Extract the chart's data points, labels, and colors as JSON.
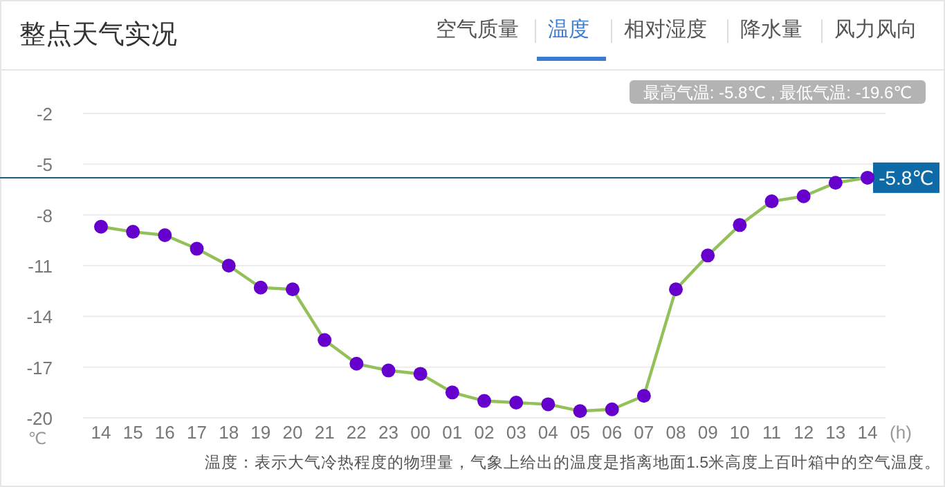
{
  "chart_data": {
    "type": "line",
    "title": "整点天气实况",
    "annotations": [
      "空气质量",
      "温度",
      "相对湿度",
      "降水量",
      "风力风向",
      "最高气温: -5.8℃ , 最低气温: -19.6℃",
      "温度：表示大气冷热程度的物理量，气象上给出的温度是指离地面1.5米高度上百叶箱中的空气温度。"
    ],
    "xlabel": "(h)",
    "ylabel": "℃",
    "categories": [
      "14",
      "15",
      "16",
      "17",
      "18",
      "19",
      "20",
      "21",
      "22",
      "23",
      "00",
      "01",
      "02",
      "03",
      "04",
      "05",
      "06",
      "07",
      "08",
      "09",
      "10",
      "11",
      "12",
      "13",
      "14"
    ],
    "series": [
      {
        "color": "#94c05a",
        "colors": [
          "#6600cc",
          "#6600cc",
          "#6600cc",
          "#6600cc",
          "#6600cc",
          "#6600cc",
          "#6600cc",
          "#6600cc",
          "#6600cc",
          "#6600cc",
          "#6600cc",
          "#6600cc",
          "#6600cc",
          "#6600cc",
          "#6600cc",
          "#6600cc",
          "#6600cc",
          "#6600cc",
          "#6600cc",
          "#6600cc",
          "#6600cc",
          "#6600cc",
          "#6600cc",
          "#6600cc",
          "#6600cc"
        ],
        "values": [
          -8.7,
          -9.0,
          -9.2,
          -10.0,
          -11.0,
          -12.3,
          -12.4,
          -15.4,
          -16.8,
          -17.2,
          -17.4,
          -18.5,
          -19.0,
          -19.1,
          -19.2,
          -19.6,
          -19.5,
          -18.7,
          -12.4,
          -10.4,
          -8.6,
          -7.2,
          -6.9,
          -6.1,
          -5.8
        ]
      }
    ],
    "ylim": [
      -20,
      -2
    ],
    "yticks": [
      -20,
      -17,
      -14,
      -11,
      -8,
      -5,
      -2
    ],
    "grid": "y",
    "marker": "circle",
    "line_style": "solid",
    "ref_lines": [
      {
        "axis": "y",
        "value": -5.8,
        "label": "-5.8℃",
        "color": "#1a5f80"
      }
    ]
  }
}
